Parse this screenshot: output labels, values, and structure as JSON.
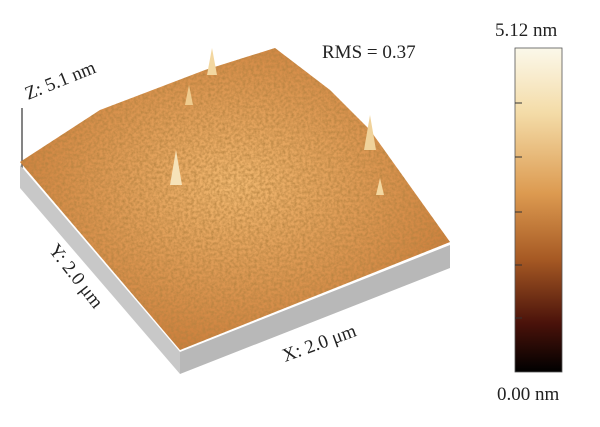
{
  "surface_plot": {
    "z_label": "Z: 5.1 nm",
    "y_label": "Y: 2.0 μm",
    "x_label": "X: 2.0 μm",
    "rms": "RMS = 0.37"
  },
  "colorbar": {
    "max_label": "5.12 nm",
    "min_label": "0.00 nm"
  }
}
